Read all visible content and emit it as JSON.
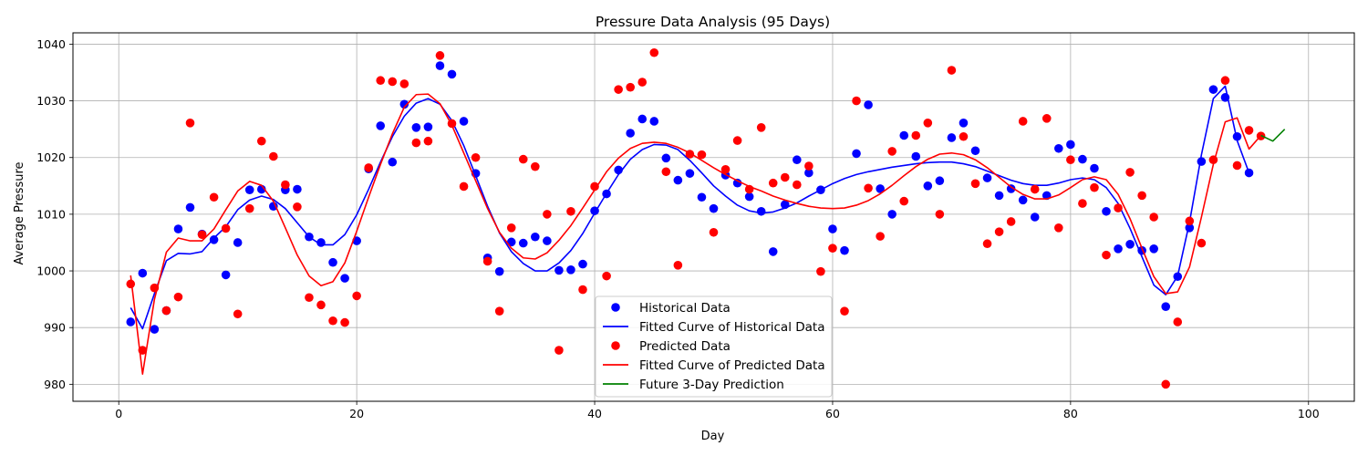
{
  "chart_data": {
    "type": "scatter",
    "title": "Pressure Data Analysis (95 Days)",
    "xlabel": "Day",
    "ylabel": "Average Pressure",
    "xlim": [
      -3.85,
      103.85
    ],
    "ylim": [
      977,
      1042
    ],
    "xticks": [
      0,
      20,
      40,
      60,
      80,
      100
    ],
    "yticks": [
      980,
      990,
      1000,
      1010,
      1020,
      1030,
      1040
    ],
    "grid": true,
    "legend_position": "bottom-center",
    "series": [
      {
        "name": "Historical Data",
        "kind": "scatter",
        "color": "#0000ff",
        "x": [
          1,
          2,
          3,
          4,
          5,
          6,
          7,
          8,
          9,
          10,
          11,
          12,
          13,
          14,
          15,
          16,
          17,
          18,
          19,
          20,
          21,
          22,
          23,
          24,
          25,
          26,
          27,
          28,
          29,
          30,
          31,
          32,
          33,
          34,
          35,
          36,
          37,
          38,
          39,
          40,
          41,
          42,
          43,
          44,
          45,
          46,
          47,
          48,
          49,
          50,
          51,
          52,
          53,
          54,
          55,
          56,
          57,
          58,
          59,
          60,
          61,
          62,
          63,
          64,
          65,
          66,
          67,
          68,
          69,
          70,
          71,
          72,
          73,
          74,
          75,
          76,
          77,
          78,
          79,
          80,
          81,
          82,
          83,
          84,
          85,
          86,
          87,
          88,
          89,
          90,
          91,
          92,
          93,
          94,
          95
        ],
        "y": [
          991.0,
          999.6,
          989.7,
          993.0,
          1007.4,
          1011.2,
          1006.5,
          1005.5,
          999.3,
          1005.0,
          1014.3,
          1014.4,
          1011.4,
          1014.3,
          1014.4,
          1006.0,
          1005.0,
          1001.5,
          998.7,
          1005.3,
          1018.0,
          1025.6,
          1019.2,
          1029.4,
          1025.3,
          1025.4,
          1036.2,
          1034.7,
          1026.4,
          1017.2,
          1002.3,
          999.9,
          1005.1,
          1004.9,
          1006.0,
          1005.3,
          1000.1,
          1000.2,
          1001.2,
          1010.6,
          1013.6,
          1017.8,
          1024.3,
          1026.8,
          1026.4,
          1019.9,
          1016.0,
          1017.2,
          1013.0,
          1011.0,
          1016.9,
          1015.5,
          1013.1,
          1010.5,
          1003.4,
          1011.7,
          1019.6,
          1017.3,
          1014.3,
          1007.4,
          1003.6,
          1020.7,
          1029.3,
          1014.5,
          1010.0,
          1023.9,
          1020.2,
          1015.0,
          1015.9,
          1023.5,
          1026.1,
          1021.2,
          1016.4,
          1013.3,
          1014.5,
          1012.5,
          1009.5,
          1013.3,
          1021.6,
          1022.3,
          1019.7,
          1018.1,
          1010.5,
          1003.9,
          1004.7,
          1003.6,
          1003.9,
          993.7,
          999.0,
          1007.6,
          1019.3,
          1032.0,
          1030.6,
          1023.7,
          1017.3
        ]
      },
      {
        "name": "Fitted Curve of Historical Data",
        "kind": "line",
        "color": "#0000ff",
        "x": [
          1,
          2,
          3,
          4,
          5,
          6,
          7,
          8,
          9,
          10,
          11,
          12,
          13,
          14,
          15,
          16,
          17,
          18,
          19,
          20,
          21,
          22,
          23,
          24,
          25,
          26,
          27,
          28,
          29,
          30,
          31,
          32,
          33,
          34,
          35,
          36,
          37,
          38,
          39,
          40,
          41,
          42,
          43,
          44,
          45,
          46,
          47,
          48,
          49,
          50,
          51,
          52,
          53,
          54,
          55,
          56,
          57,
          58,
          59,
          60,
          61,
          62,
          63,
          64,
          65,
          66,
          67,
          68,
          69,
          70,
          71,
          72,
          73,
          74,
          75,
          76,
          77,
          78,
          79,
          80,
          81,
          82,
          83,
          84,
          85,
          86,
          87,
          88,
          89,
          90,
          91,
          92,
          93,
          94,
          95
        ],
        "y": [
          993.5,
          989.8,
          996.0,
          1001.8,
          1003.1,
          1003.0,
          1003.4,
          1005.8,
          1007.8,
          1010.8,
          1012.5,
          1013.2,
          1012.6,
          1011.0,
          1008.5,
          1006.0,
          1004.6,
          1004.6,
          1006.4,
          1009.9,
          1014.4,
          1019.2,
          1023.7,
          1027.3,
          1029.6,
          1030.4,
          1029.4,
          1026.5,
          1022.1,
          1016.8,
          1011.4,
          1006.7,
          1003.4,
          1001.3,
          1000.0,
          1000.0,
          1001.4,
          1003.6,
          1006.6,
          1010.2,
          1013.7,
          1017.0,
          1019.7,
          1021.4,
          1022.3,
          1022.2,
          1021.4,
          1019.5,
          1017.3,
          1015.0,
          1013.2,
          1011.6,
          1010.6,
          1010.2,
          1010.4,
          1011.1,
          1012.0,
          1013.2,
          1014.3,
          1015.4,
          1016.3,
          1017.0,
          1017.5,
          1017.9,
          1018.3,
          1018.6,
          1018.9,
          1019.1,
          1019.2,
          1019.2,
          1018.9,
          1018.4,
          1017.6,
          1016.8,
          1016.0,
          1015.4,
          1015.1,
          1015.1,
          1015.5,
          1016.1,
          1016.4,
          1016.1,
          1014.7,
          1011.9,
          1007.5,
          1002.5,
          997.5,
          995.8,
          999.1,
          1008.6,
          1020.5,
          1030.4,
          1032.6,
          1023.0,
          1017.3
        ]
      },
      {
        "name": "Predicted Data",
        "kind": "scatter",
        "color": "#ff0000",
        "x": [
          1,
          2,
          3,
          4,
          5,
          6,
          7,
          8,
          9,
          10,
          11,
          12,
          13,
          14,
          15,
          16,
          17,
          18,
          19,
          20,
          21,
          22,
          23,
          24,
          25,
          26,
          27,
          28,
          29,
          30,
          31,
          32,
          33,
          34,
          35,
          36,
          37,
          38,
          39,
          40,
          41,
          42,
          43,
          44,
          45,
          46,
          47,
          48,
          49,
          50,
          51,
          52,
          53,
          54,
          55,
          56,
          57,
          58,
          59,
          60,
          61,
          62,
          63,
          64,
          65,
          66,
          67,
          68,
          69,
          70,
          71,
          72,
          73,
          74,
          75,
          76,
          77,
          78,
          79,
          80,
          81,
          82,
          83,
          84,
          85,
          86,
          87,
          88,
          89,
          90,
          91,
          92,
          93,
          94,
          95,
          96
        ],
        "y": [
          997.7,
          986.0,
          997.0,
          993.0,
          995.4,
          1026.1,
          1006.4,
          1013.0,
          1007.5,
          992.4,
          1011.0,
          1022.9,
          1020.2,
          1015.2,
          1011.3,
          995.3,
          994.0,
          991.2,
          990.9,
          995.6,
          1018.2,
          1033.6,
          1033.4,
          1033.0,
          1022.6,
          1022.9,
          1038.0,
          1026.0,
          1014.9,
          1020.0,
          1001.7,
          992.9,
          1007.6,
          1019.7,
          1018.4,
          1010.0,
          986.0,
          1010.5,
          996.7,
          1014.9,
          999.1,
          1032.0,
          1032.4,
          1033.3,
          1038.5,
          1017.5,
          1001.0,
          1020.6,
          1020.5,
          1006.8,
          1017.9,
          1023.0,
          1014.4,
          1025.3,
          1015.5,
          1016.5,
          1015.2,
          1018.5,
          999.9,
          1004.0,
          992.9,
          1030.0,
          1014.6,
          1006.1,
          1021.1,
          1012.3,
          1023.9,
          1026.1,
          1010.0,
          1035.4,
          1023.7,
          1015.4,
          1004.8,
          1006.9,
          1008.7,
          1026.4,
          1014.4,
          1026.9,
          1007.6,
          1019.6,
          1011.9,
          1014.7,
          1002.8,
          1011.1,
          1017.4,
          1013.3,
          1009.5,
          980.0,
          991.0,
          1008.8,
          1004.9,
          1019.6,
          1033.6,
          1018.6,
          1024.8,
          1023.8
        ]
      },
      {
        "name": "Fitted Curve of Predicted Data",
        "kind": "line",
        "color": "#ff0000",
        "x": [
          1,
          2,
          3,
          4,
          5,
          6,
          7,
          8,
          9,
          10,
          11,
          12,
          13,
          14,
          15,
          16,
          17,
          18,
          19,
          20,
          21,
          22,
          23,
          24,
          25,
          26,
          27,
          28,
          29,
          30,
          31,
          32,
          33,
          34,
          35,
          36,
          37,
          38,
          39,
          40,
          41,
          42,
          43,
          44,
          45,
          46,
          47,
          48,
          49,
          50,
          51,
          52,
          53,
          54,
          55,
          56,
          57,
          58,
          59,
          60,
          61,
          62,
          63,
          64,
          65,
          66,
          67,
          68,
          69,
          70,
          71,
          72,
          73,
          74,
          75,
          76,
          77,
          78,
          79,
          80,
          81,
          82,
          83,
          84,
          85,
          86,
          87,
          88,
          89,
          90,
          91,
          92,
          93,
          94,
          95,
          96
        ],
        "y": [
          999.2,
          981.8,
          995.0,
          1003.3,
          1005.8,
          1005.3,
          1005.3,
          1007.4,
          1010.8,
          1014.1,
          1015.8,
          1015.1,
          1012.3,
          1007.6,
          1002.8,
          999.1,
          997.4,
          998.1,
          1001.4,
          1007.0,
          1013.0,
          1018.8,
          1024.2,
          1028.9,
          1031.1,
          1031.2,
          1029.5,
          1025.7,
          1020.8,
          1015.9,
          1011.0,
          1006.8,
          1004.0,
          1002.3,
          1002.1,
          1003.2,
          1005.4,
          1008.0,
          1011.1,
          1014.3,
          1017.5,
          1019.9,
          1021.6,
          1022.5,
          1022.7,
          1022.5,
          1021.8,
          1020.8,
          1019.5,
          1018.2,
          1017.0,
          1015.9,
          1014.9,
          1014.1,
          1013.2,
          1012.5,
          1011.9,
          1011.4,
          1011.1,
          1011.0,
          1011.1,
          1011.6,
          1012.4,
          1013.6,
          1015.1,
          1016.8,
          1018.4,
          1019.7,
          1020.6,
          1020.8,
          1020.5,
          1019.6,
          1018.2,
          1016.5,
          1014.8,
          1013.5,
          1012.7,
          1012.7,
          1013.4,
          1014.7,
          1016.1,
          1016.6,
          1016.1,
          1013.5,
          1009.2,
          1004.0,
          999.0,
          996.0,
          996.3,
          1000.7,
          1009.5,
          1018.8,
          1026.3,
          1027.0,
          1021.5,
          1023.9
        ]
      },
      {
        "name": "Future 3-Day Prediction",
        "kind": "line",
        "color": "#008000",
        "x": [
          96,
          97,
          98
        ],
        "y": [
          1023.9,
          1022.9,
          1025.0
        ]
      }
    ]
  }
}
